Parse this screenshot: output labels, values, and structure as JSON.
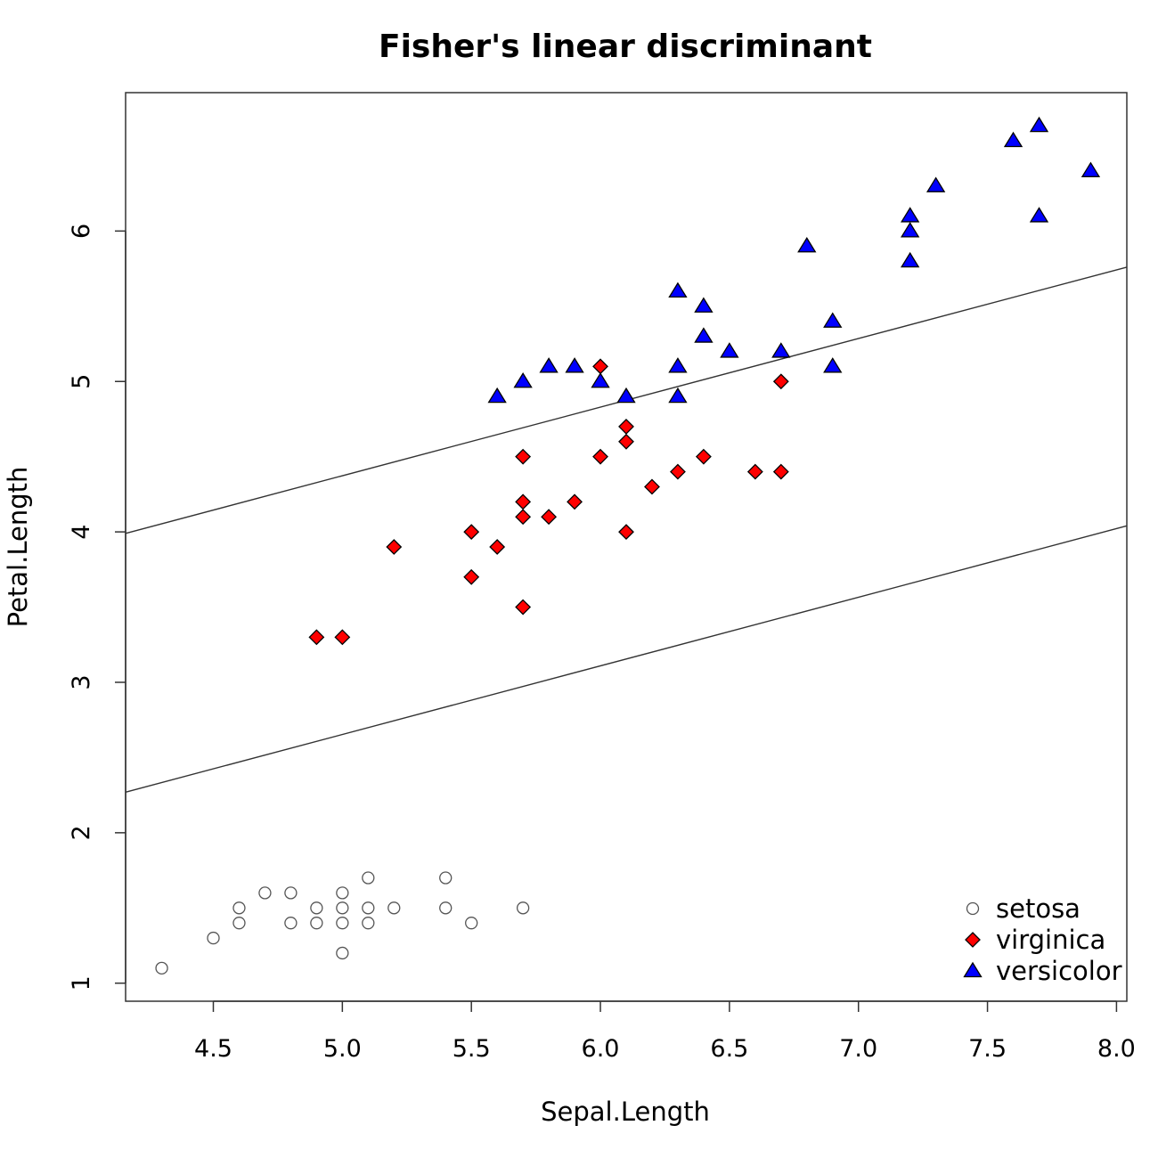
{
  "chart_data": {
    "type": "scatter",
    "title": "Fisher's linear discriminant",
    "xlabel": "Sepal.Length",
    "ylabel": "Petal.Length",
    "xlim": [
      4.16,
      8.04
    ],
    "ylim": [
      0.88,
      6.92
    ],
    "x_ticks": [
      4.5,
      5.0,
      5.5,
      6.0,
      6.5,
      7.0,
      7.5,
      8.0
    ],
    "x_tick_labels": [
      "4.5",
      "5.0",
      "5.5",
      "6.0",
      "6.5",
      "7.0",
      "7.5",
      "8.0"
    ],
    "y_ticks": [
      1,
      2,
      3,
      4,
      5,
      6
    ],
    "y_tick_labels": [
      "1",
      "2",
      "3",
      "4",
      "5",
      "6"
    ],
    "grid": false,
    "legend_position": "bottom-right",
    "series": [
      {
        "name": "setosa",
        "marker": "circle",
        "fill": "#ffffff",
        "stroke": "#555555",
        "points": [
          [
            4.3,
            1.1
          ],
          [
            4.5,
            1.3
          ],
          [
            4.6,
            1.5
          ],
          [
            4.6,
            1.4
          ],
          [
            4.7,
            1.6
          ],
          [
            4.8,
            1.6
          ],
          [
            4.8,
            1.4
          ],
          [
            4.9,
            1.5
          ],
          [
            4.9,
            1.4
          ],
          [
            5.0,
            1.6
          ],
          [
            5.0,
            1.5
          ],
          [
            5.0,
            1.4
          ],
          [
            5.0,
            1.2
          ],
          [
            5.1,
            1.7
          ],
          [
            5.1,
            1.5
          ],
          [
            5.1,
            1.4
          ],
          [
            5.2,
            1.5
          ],
          [
            5.4,
            1.7
          ],
          [
            5.4,
            1.5
          ],
          [
            5.5,
            1.4
          ],
          [
            5.7,
            1.5
          ]
        ]
      },
      {
        "name": "virginica",
        "marker": "diamond",
        "fill": "#ff0000",
        "stroke": "#000000",
        "points": [
          [
            4.9,
            3.3
          ],
          [
            5.0,
            3.3
          ],
          [
            5.2,
            3.9
          ],
          [
            5.5,
            4.0
          ],
          [
            5.5,
            3.7
          ],
          [
            5.6,
            3.9
          ],
          [
            5.7,
            4.5
          ],
          [
            5.7,
            4.2
          ],
          [
            5.7,
            4.1
          ],
          [
            5.7,
            3.5
          ],
          [
            5.8,
            4.1
          ],
          [
            5.9,
            4.2
          ],
          [
            6.0,
            5.1
          ],
          [
            6.0,
            4.5
          ],
          [
            6.1,
            4.7
          ],
          [
            6.1,
            4.6
          ],
          [
            6.1,
            4.0
          ],
          [
            6.2,
            4.3
          ],
          [
            6.3,
            4.4
          ],
          [
            6.4,
            4.5
          ],
          [
            6.6,
            4.4
          ],
          [
            6.7,
            5.0
          ],
          [
            6.7,
            4.4
          ]
        ]
      },
      {
        "name": "versicolor",
        "marker": "triangle",
        "fill": "#0000ff",
        "stroke": "#000000",
        "points": [
          [
            5.6,
            4.9
          ],
          [
            5.7,
            5.0
          ],
          [
            5.8,
            5.1
          ],
          [
            5.9,
            5.1
          ],
          [
            6.0,
            5.0
          ],
          [
            6.1,
            4.9
          ],
          [
            6.3,
            5.6
          ],
          [
            6.3,
            5.1
          ],
          [
            6.3,
            4.9
          ],
          [
            6.4,
            5.5
          ],
          [
            6.4,
            5.3
          ],
          [
            6.5,
            5.2
          ],
          [
            6.7,
            5.2
          ],
          [
            6.8,
            5.9
          ],
          [
            6.9,
            5.4
          ],
          [
            6.9,
            5.1
          ],
          [
            7.2,
            6.1
          ],
          [
            7.2,
            6.0
          ],
          [
            7.2,
            5.8
          ],
          [
            7.3,
            6.3
          ],
          [
            7.6,
            6.6
          ],
          [
            7.7,
            6.7
          ],
          [
            7.7,
            6.1
          ],
          [
            7.9,
            6.4
          ]
        ]
      }
    ],
    "lines": [
      {
        "x": [
          4.16,
          8.04
        ],
        "y": [
          3.99,
          5.76
        ]
      },
      {
        "x": [
          4.16,
          8.04
        ],
        "y": [
          2.27,
          4.04
        ]
      }
    ]
  }
}
